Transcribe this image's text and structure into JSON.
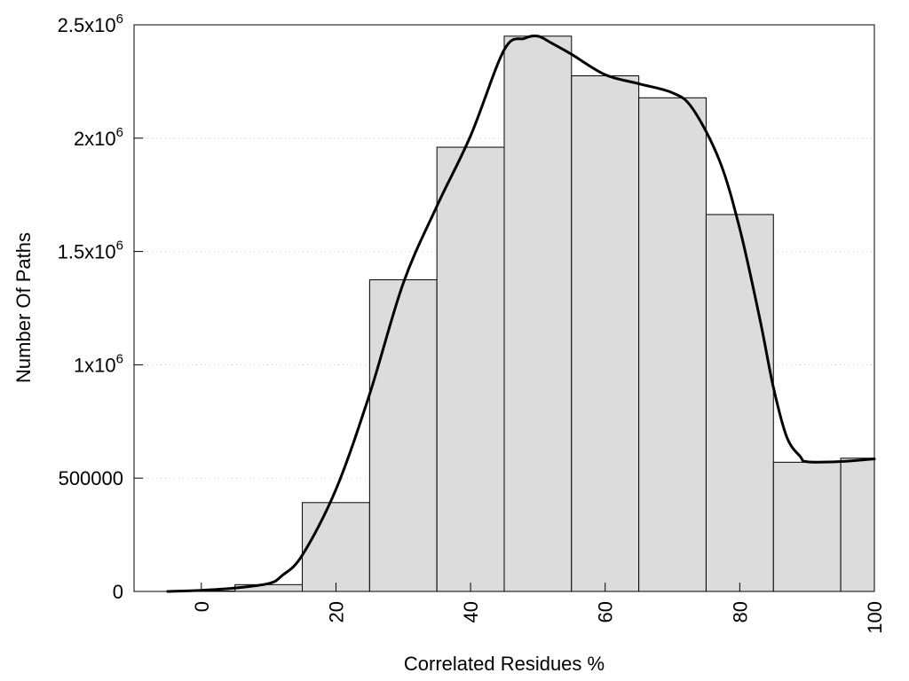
{
  "chart_data": {
    "type": "bar",
    "title": "",
    "xlabel": "Correlated Residues %",
    "ylabel": "Number Of Paths",
    "xlim": [
      -10,
      100
    ],
    "ylim": [
      0,
      2500000
    ],
    "bin_width": 10,
    "x_ticks": [
      0,
      20,
      40,
      60,
      80,
      100
    ],
    "x_tick_labels": [
      "0",
      "20",
      "40",
      "60",
      "80",
      "100"
    ],
    "y_ticks": [
      0,
      500000,
      1000000,
      1500000,
      2000000,
      2500000
    ],
    "y_tick_labels": [
      {
        "text": "0",
        "sup": ""
      },
      {
        "text": "500000",
        "sup": ""
      },
      {
        "text": "1x10",
        "sup": "6"
      },
      {
        "text": "1.5x10",
        "sup": "6"
      },
      {
        "text": "2x10",
        "sup": "6"
      },
      {
        "text": "2.5x10",
        "sup": "6"
      }
    ],
    "grid": "horizontal-dotted",
    "bins": [
      {
        "x": 0,
        "value": 2000
      },
      {
        "x": 10,
        "value": 30000
      },
      {
        "x": 20,
        "value": 392000
      },
      {
        "x": 30,
        "value": 1375000
      },
      {
        "x": 40,
        "value": 1960000
      },
      {
        "x": 50,
        "value": 2450000
      },
      {
        "x": 60,
        "value": 2275000
      },
      {
        "x": 70,
        "value": 2178000
      },
      {
        "x": 80,
        "value": 1663000
      },
      {
        "x": 90,
        "value": 570000
      },
      {
        "x": 100,
        "value": 588000
      }
    ],
    "smooth_curve": {
      "x": [
        -5,
        0,
        5,
        10,
        12,
        15,
        20,
        25,
        30,
        35,
        40,
        45,
        48,
        50,
        52,
        55,
        60,
        65,
        70,
        73,
        77,
        80,
        83,
        85,
        87,
        89,
        90,
        95,
        100
      ],
      "y": [
        0,
        5000,
        15000,
        35000,
        70000,
        160000,
        450000,
        870000,
        1360000,
        1700000,
        2010000,
        2390000,
        2440000,
        2450000,
        2420000,
        2370000,
        2280000,
        2240000,
        2200000,
        2130000,
        1900000,
        1600000,
        1200000,
        900000,
        680000,
        595000,
        572000,
        573000,
        585000
      ]
    }
  }
}
